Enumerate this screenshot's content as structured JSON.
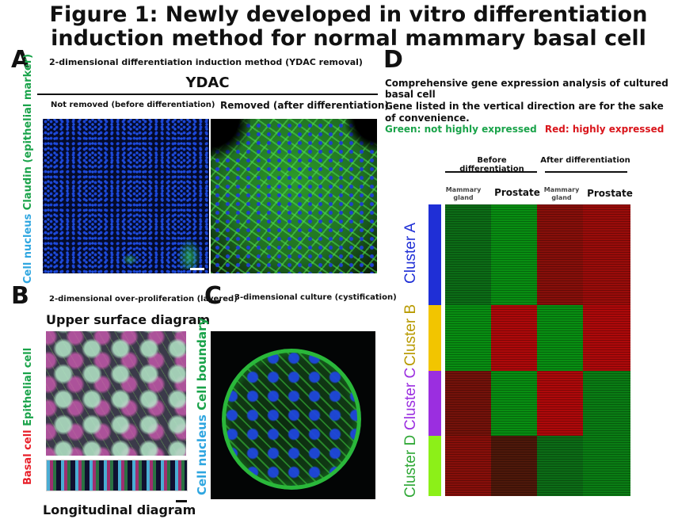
{
  "figure": {
    "title_line1": "Figure 1: Newly developed in vitro differentiation",
    "title_line2": "induction method for normal mammary basal cell"
  },
  "panel_a": {
    "letter": "A",
    "heading": "2-dimensional differentiation induction method (YDAC removal)",
    "group_label": "YDAC",
    "left_caption": "Not removed (before differentiation)",
    "right_caption": "Removed (after differentiation)",
    "side_label_part1": "Cell nucleus",
    "side_label_part2": "Claudin (epithelial marker)"
  },
  "panel_b": {
    "letter": "B",
    "heading": "2-dimensional over-proliferation (layered)",
    "top_caption": "Upper surface diagram",
    "bottom_caption": "Longitudinal diagram",
    "side_label_part1": "Basal cell",
    "side_label_part2": "Epithelial cell"
  },
  "panel_c": {
    "letter": "C",
    "heading": "3-dimensional culture (cystification)",
    "side_label_part1": "Cell nucleus",
    "side_label_part2": "Cell boundary"
  },
  "panel_d": {
    "letter": "D",
    "line1": "Comprehensive gene expression analysis of cultured basal cell",
    "line2": "Gene listed in the vertical direction are for the sake of convenience.",
    "legend_green": "Green: not highly expressed",
    "legend_red": "Red: highly expressed",
    "group_before": "Before differentiation",
    "group_after": "After differentiation",
    "col_mammary": "Mammary gland",
    "col_prostate": "Prostate",
    "clusters": [
      "Cluster A",
      "Cluster B",
      "Cluster C",
      "Cluster D"
    ]
  },
  "colors": {
    "nucleus": "#2fa6e0",
    "epithelial_green": "#1aa34a",
    "basal_red": "#e8202a",
    "legend_green": "#1aa34a",
    "legend_red": "#d9151b",
    "cluster_a": "#1f2fd6",
    "cluster_b": "#f2c500",
    "cluster_c": "#9b2ee0",
    "cluster_d": "#8cf018"
  },
  "chart_data": {
    "type": "heatmap",
    "title": "",
    "columns": [
      "Before differentiation – Mammary gland",
      "Before differentiation – Prostate",
      "After differentiation – Mammary gland",
      "After differentiation – Prostate"
    ],
    "rows": [
      "Cluster A",
      "Cluster B",
      "Cluster C",
      "Cluster D"
    ],
    "values": [
      [
        0.3,
        0.2,
        0.75,
        0.8
      ],
      [
        0.2,
        0.85,
        0.2,
        0.85
      ],
      [
        0.7,
        0.2,
        0.85,
        0.25
      ],
      [
        0.75,
        0.6,
        0.3,
        0.25
      ]
    ],
    "scale": "green (not highly expressed) to red (highly expressed)"
  }
}
